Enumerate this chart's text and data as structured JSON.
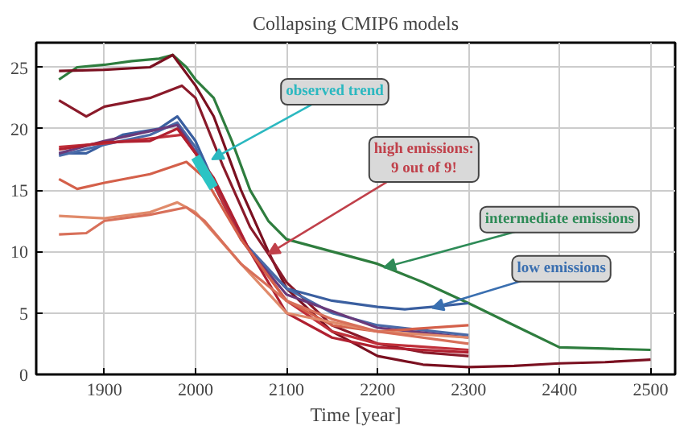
{
  "chart_data": {
    "type": "line",
    "title": "Collapsing CMIP6 models",
    "xlabel": "Time [year]",
    "xlim": [
      1825,
      2527
    ],
    "ylim": [
      0,
      27
    ],
    "xticks": [
      1900,
      2000,
      2100,
      2200,
      2300,
      2400,
      2500
    ],
    "yticks": [
      0,
      5,
      10,
      15,
      20,
      25
    ],
    "grid": true,
    "line_style": "solid",
    "marker": "none",
    "series": [
      {
        "color": "#2e7d3e",
        "x": [
          1850,
          1870,
          1900,
          1930,
          1960,
          1975,
          1990,
          2000,
          2020,
          2040,
          2060,
          2080,
          2100,
          2150,
          2200,
          2250,
          2300,
          2350,
          2400,
          2450,
          2500
        ],
        "values": [
          24,
          25,
          25.2,
          25.5,
          25.7,
          26,
          25,
          24,
          22.5,
          19,
          15,
          12.5,
          11,
          10,
          9,
          7.5,
          5.8,
          4,
          2.2,
          2.1,
          2.0
        ]
      },
      {
        "color": "#7a1020",
        "x": [
          1850,
          1900,
          1950,
          1975,
          2000,
          2020,
          2050,
          2080,
          2100,
          2150,
          2200,
          2250,
          2300,
          2350,
          2400,
          2450,
          2500
        ],
        "values": [
          24.7,
          24.8,
          25,
          26,
          23.5,
          21,
          15,
          10,
          7,
          3.5,
          1.5,
          0.8,
          0.6,
          0.7,
          0.9,
          1.0,
          1.2
        ]
      },
      {
        "color": "#8a1a2a",
        "x": [
          1850,
          1880,
          1900,
          1950,
          1985,
          2000,
          2030,
          2060,
          2080,
          2100,
          2150,
          2200,
          2250,
          2300
        ],
        "values": [
          22.3,
          21,
          21.8,
          22.5,
          23.5,
          22.5,
          17,
          12,
          9.8,
          7.5,
          4,
          2.5,
          1.8,
          1.5
        ]
      },
      {
        "color": "#3a5fa0",
        "x": [
          1850,
          1880,
          1920,
          1960,
          1980,
          2000,
          2030,
          2060,
          2100,
          2150,
          2200,
          2230,
          2260,
          2300
        ],
        "values": [
          18,
          18,
          19.5,
          20,
          21,
          19,
          14,
          10,
          7,
          6,
          5.5,
          5.3,
          5.5,
          5.8
        ]
      },
      {
        "color": "#4a6aa8",
        "x": [
          1850,
          1900,
          1950,
          1980,
          2000,
          2050,
          2100,
          2150,
          2200,
          2300
        ],
        "values": [
          17.8,
          18.7,
          19.5,
          20.5,
          18.5,
          11,
          7,
          5,
          4,
          3.2
        ]
      },
      {
        "color": "#6a3a7a",
        "x": [
          1850,
          1900,
          1950,
          1980,
          2010,
          2060,
          2100,
          2200,
          2300
        ],
        "values": [
          18,
          19,
          19.8,
          20.3,
          17,
          10,
          6.5,
          3.8,
          3
        ]
      },
      {
        "color": "#c0303a",
        "x": [
          1850,
          1900,
          1950,
          1985,
          2010,
          2050,
          2100,
          2150,
          2200,
          2300
        ],
        "values": [
          18.5,
          18.8,
          19.2,
          19.5,
          17,
          11,
          6,
          3.5,
          2.5,
          2
        ]
      },
      {
        "color": "#b02030",
        "x": [
          1850,
          1900,
          1950,
          1980,
          2020,
          2060,
          2100,
          2150,
          2200,
          2300
        ],
        "values": [
          18.3,
          18.9,
          19,
          20,
          16,
          10,
          5,
          3,
          2.2,
          1.8
        ]
      },
      {
        "color": "#d4604a",
        "x": [
          1850,
          1870,
          1900,
          1950,
          1990,
          2010,
          2050,
          2100,
          2150,
          2200,
          2300
        ],
        "values": [
          15.9,
          15.1,
          15.6,
          16.3,
          17.3,
          16,
          11,
          6,
          4,
          3.5,
          4
        ]
      },
      {
        "color": "#e08a6a",
        "x": [
          1850,
          1900,
          1950,
          1980,
          2000,
          2050,
          2100,
          2200,
          2300
        ],
        "values": [
          12.9,
          12.7,
          13.2,
          14,
          13.2,
          9,
          5,
          3.5,
          3
        ]
      },
      {
        "color": "#d8705a",
        "x": [
          1850,
          1880,
          1900,
          1950,
          1990,
          2010,
          2050,
          2100,
          2150,
          2200,
          2300
        ],
        "values": [
          11.4,
          11.5,
          12.5,
          13,
          13.6,
          12.5,
          9,
          6,
          4.5,
          3.5,
          2.5
        ]
      },
      {
        "color": "#2bc4c4",
        "x": [
          2000,
          2020
        ],
        "values": [
          17.7,
          15.2
        ]
      }
    ],
    "annotations": [
      {
        "text": "observed trend",
        "x": 2018,
        "y": 17.5
      },
      {
        "text": "high emissions:\n9 out of 9!",
        "x": 2080,
        "y": 9.8
      },
      {
        "text": "intermediate emissions",
        "x": 2207,
        "y": 8.7
      },
      {
        "text": "low emissions",
        "x": 2260,
        "y": 5.4
      }
    ]
  }
}
